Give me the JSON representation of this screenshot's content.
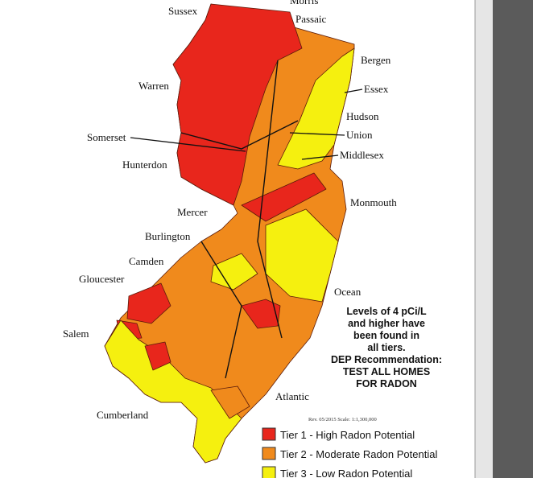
{
  "labels": [
    "Sussex",
    "Morris",
    "Passaic",
    "Bergen",
    "Warren",
    "Essex",
    "Hudson",
    "Somerset",
    "Union",
    "Middlesex",
    "Hunterdon",
    "Monmouth",
    "Mercer",
    "Burlington",
    "Camden",
    "Gloucester",
    "Ocean",
    "Salem",
    "Atlantic",
    "Cumberland"
  ],
  "note": [
    "Levels of 4 pCi/L",
    "and higher have",
    "been found in",
    "all tiers.",
    "DEP Recommendation:",
    "TEST ALL HOMES",
    "FOR RADON"
  ],
  "revision": "Rev. 05/2015   Scale: 1:1,300,000",
  "legend": [
    {
      "label": "Tier 1 - High Radon Potential"
    },
    {
      "label": "Tier 2 - Moderate Radon Potential"
    },
    {
      "label": "Tier 3 - Low Radon Potential"
    }
  ]
}
